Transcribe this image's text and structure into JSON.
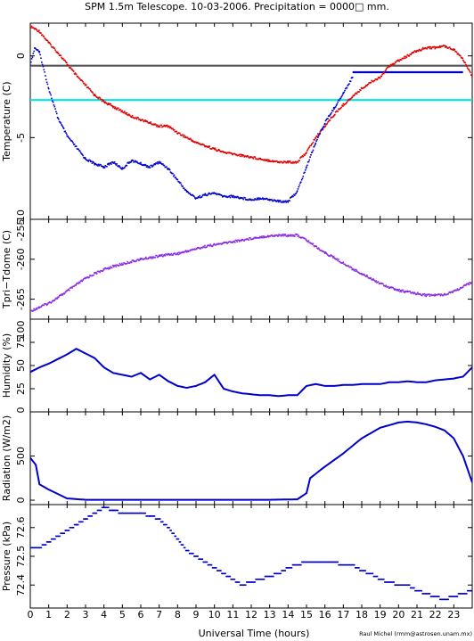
{
  "page": {
    "title": "SPM 1.5m Telescope. 10-03-2006. Precipitation = 0000□ mm.",
    "credit": "Raul Michel (rmm@astrosen.unam.mx)",
    "xlabel": "Universal Time (hours)"
  },
  "chart_data": [
    {
      "id": "temperature",
      "type": "scatter",
      "ylabel": "Temperature (C)",
      "xlim": [
        0,
        24
      ],
      "ylim": [
        -10,
        2
      ],
      "yticks": [
        0,
        -5,
        -10
      ],
      "ytick_labels": [
        "0",
        "-5",
        "-10"
      ],
      "hlines": [
        {
          "y": -0.6,
          "color": "#555555"
        },
        {
          "y": -2.7,
          "color": "#00e5e5"
        },
        {
          "y": -1.0,
          "x0": 17.5,
          "x1": 23.5,
          "color": "#0000cc"
        }
      ],
      "series": [
        {
          "color": "#e00000",
          "x": [
            0,
            0.5,
            1,
            1.5,
            2,
            2.5,
            3,
            3.5,
            4,
            4.5,
            5,
            5.5,
            6,
            6.5,
            7,
            7.5,
            8,
            8.5,
            9,
            9.5,
            10,
            10.5,
            11,
            11.5,
            12,
            12.5,
            13,
            13.5,
            14,
            14.5,
            15,
            15.5,
            16,
            16.5,
            17,
            17.5,
            18,
            18.5,
            19,
            19.5,
            20,
            20.5,
            21,
            21.5,
            22,
            22.5,
            23,
            23.5,
            24
          ],
          "y": [
            1.8,
            1.5,
            0.8,
            0.2,
            -0.5,
            -1.2,
            -1.8,
            -2.4,
            -2.8,
            -3.1,
            -3.4,
            -3.7,
            -3.9,
            -4.1,
            -4.3,
            -4.3,
            -4.7,
            -5.0,
            -5.3,
            -5.5,
            -5.7,
            -5.9,
            -6.0,
            -6.1,
            -6.2,
            -6.3,
            -6.4,
            -6.5,
            -6.5,
            -6.5,
            -5.9,
            -5.0,
            -4.3,
            -3.6,
            -3.0,
            -2.5,
            -2.0,
            -1.6,
            -1.3,
            -0.6,
            -0.3,
            0.0,
            0.3,
            0.5,
            0.5,
            0.6,
            0.4,
            -0.2,
            -1.3
          ]
        },
        {
          "color": "#0000cc",
          "x": [
            0,
            0.25,
            0.5,
            1,
            1.5,
            2,
            2.5,
            3,
            3.5,
            4,
            4.5,
            5,
            5.5,
            6,
            6.5,
            7,
            7.5,
            8,
            8.5,
            9,
            9.5,
            10,
            10.5,
            11,
            11.5,
            12,
            12.5,
            13,
            13.5,
            14,
            14.5,
            15,
            15.5,
            16,
            16.5,
            17,
            17.5
          ],
          "y": [
            -0.5,
            0.5,
            0.2,
            -2.0,
            -3.8,
            -4.9,
            -5.6,
            -6.3,
            -6.6,
            -6.8,
            -6.5,
            -6.9,
            -6.4,
            -6.6,
            -6.8,
            -6.5,
            -6.9,
            -7.6,
            -8.3,
            -8.7,
            -8.5,
            -8.4,
            -8.6,
            -8.6,
            -8.7,
            -8.8,
            -8.7,
            -8.8,
            -8.9,
            -8.9,
            -8.3,
            -6.8,
            -5.3,
            -4.1,
            -3.2,
            -2.3,
            -1.3
          ]
        }
      ]
    },
    {
      "id": "tpri-tdome",
      "type": "scatter",
      "ylabel": "Tpri−Tdome (C)",
      "xlim": [
        0,
        24
      ],
      "ylim": [
        -267.5,
        -255
      ],
      "yticks": [
        -255,
        -260,
        -265
      ],
      "ytick_labels": [
        "-255",
        "-260",
        "-265"
      ],
      "series": [
        {
          "color": "#8a2be2",
          "x": [
            0,
            0.5,
            1,
            1.5,
            2,
            2.5,
            3,
            3.5,
            4,
            4.5,
            5,
            5.5,
            6,
            6.5,
            7,
            7.5,
            8,
            8.5,
            9,
            9.5,
            10,
            10.5,
            11,
            11.5,
            12,
            12.5,
            13,
            13.5,
            14,
            14.5,
            15,
            15.5,
            16,
            16.5,
            17,
            17.5,
            18,
            18.5,
            19,
            19.5,
            20,
            20.5,
            21,
            21.5,
            22,
            22.5,
            23,
            23.5,
            24
          ],
          "y": [
            -266.5,
            -266.0,
            -265.5,
            -264.8,
            -264.0,
            -263.2,
            -262.4,
            -261.8,
            -261.3,
            -260.9,
            -260.6,
            -260.3,
            -260.0,
            -259.8,
            -259.6,
            -259.4,
            -259.3,
            -259.0,
            -258.7,
            -258.4,
            -258.2,
            -258.0,
            -257.8,
            -257.6,
            -257.4,
            -257.2,
            -257.1,
            -257.0,
            -257.0,
            -257.0,
            -257.6,
            -258.4,
            -259.2,
            -259.8,
            -260.5,
            -261.2,
            -261.8,
            -262.4,
            -263.0,
            -263.5,
            -263.9,
            -264.1,
            -264.3,
            -264.5,
            -264.5,
            -264.4,
            -264.0,
            -263.5,
            -262.8
          ]
        }
      ]
    },
    {
      "id": "humidity",
      "type": "line",
      "ylabel": "Humidity (%)",
      "xlim": [
        0,
        24
      ],
      "ylim": [
        0,
        100
      ],
      "yticks": [
        0,
        25,
        50,
        75,
        100
      ],
      "ytick_labels": [
        "0",
        "25",
        "50",
        "75",
        "100"
      ],
      "series": [
        {
          "color": "#0000cc",
          "x": [
            0,
            0.5,
            1,
            1.5,
            2,
            2.5,
            3,
            3.5,
            4,
            4.5,
            5,
            5.5,
            6,
            6.5,
            7,
            7.5,
            8,
            8.5,
            9,
            9.5,
            10,
            10.5,
            11,
            11.5,
            12,
            12.5,
            13,
            13.5,
            14,
            14.5,
            15,
            15.5,
            16,
            16.5,
            17,
            17.5,
            18,
            18.5,
            19,
            19.5,
            20,
            20.5,
            21,
            21.5,
            22,
            22.5,
            23,
            23.5,
            24
          ],
          "y": [
            43,
            48,
            52,
            57,
            62,
            68,
            63,
            58,
            48,
            42,
            40,
            38,
            42,
            35,
            40,
            33,
            28,
            26,
            28,
            32,
            40,
            25,
            22,
            20,
            19,
            18,
            18,
            17,
            18,
            18,
            28,
            30,
            28,
            28,
            29,
            29,
            30,
            30,
            30,
            32,
            32,
            33,
            32,
            32,
            34,
            35,
            36,
            38,
            48
          ]
        }
      ]
    },
    {
      "id": "radiation",
      "type": "line",
      "ylabel": "Radiation (W/m2)",
      "xlim": [
        0,
        24
      ],
      "ylim": [
        -50,
        1000
      ],
      "yticks": [
        0,
        500
      ],
      "ytick_labels": [
        "0",
        "500"
      ],
      "series": [
        {
          "color": "#0000cc",
          "x": [
            0,
            0.3,
            0.5,
            1,
            1.5,
            2,
            3,
            5,
            7,
            9,
            11,
            13,
            14.5,
            15,
            15.2,
            16,
            17,
            18,
            19,
            20,
            20.5,
            21,
            21.5,
            22,
            22.5,
            23,
            23.5,
            24
          ],
          "y": [
            480,
            400,
            180,
            120,
            70,
            20,
            5,
            5,
            5,
            5,
            5,
            5,
            10,
            80,
            250,
            380,
            530,
            700,
            820,
            880,
            890,
            880,
            860,
            830,
            790,
            700,
            500,
            200
          ]
        }
      ]
    },
    {
      "id": "pressure",
      "type": "scatter",
      "ylabel": "Pressure (kPa)",
      "xlim": [
        0,
        24
      ],
      "ylim": [
        72.32,
        72.68
      ],
      "yticks": [
        72.6,
        72.5,
        72.4
      ],
      "ytick_labels": [
        "72.6",
        "72.5",
        "72.4"
      ],
      "xticks": [
        0,
        1,
        2,
        3,
        4,
        5,
        6,
        7,
        8,
        9,
        10,
        11,
        12,
        13,
        14,
        15,
        16,
        17,
        18,
        19,
        20,
        21,
        22,
        23
      ],
      "xtick_labels": [
        "0",
        "1",
        "2",
        "3",
        "4",
        "5",
        "6",
        "7",
        "8",
        "9",
        "10",
        "11",
        "12",
        "13",
        "14",
        "15",
        "16",
        "17",
        "18",
        "19",
        "20",
        "21",
        "22",
        "23"
      ],
      "series": [
        {
          "color": "#0000cc",
          "x": [
            0,
            0.5,
            1,
            1.5,
            2,
            2.5,
            3,
            3.5,
            4,
            4.5,
            5,
            5.5,
            6,
            6.5,
            7,
            7.5,
            8,
            8.5,
            9,
            9.5,
            10,
            10.5,
            11,
            11.5,
            12,
            12.5,
            13,
            13.5,
            14,
            14.5,
            15,
            15.5,
            16,
            16.5,
            17,
            17.5,
            18,
            18.5,
            19,
            19.5,
            20,
            20.5,
            21,
            21.5,
            22,
            22.5,
            23,
            23.5,
            24
          ],
          "y": [
            72.53,
            72.53,
            72.55,
            72.57,
            72.59,
            72.61,
            72.63,
            72.65,
            72.67,
            72.66,
            72.65,
            72.65,
            72.65,
            72.64,
            72.63,
            72.6,
            72.56,
            72.52,
            72.5,
            72.48,
            72.46,
            72.44,
            72.42,
            72.4,
            72.41,
            72.42,
            72.43,
            72.44,
            72.46,
            72.47,
            72.48,
            72.48,
            72.48,
            72.48,
            72.47,
            72.47,
            72.45,
            72.44,
            72.42,
            72.41,
            72.4,
            72.4,
            72.38,
            72.37,
            72.36,
            72.35,
            72.36,
            72.37,
            72.38
          ]
        }
      ]
    }
  ]
}
